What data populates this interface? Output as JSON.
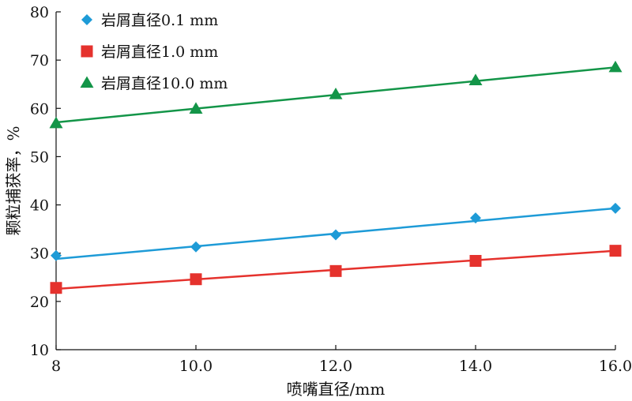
{
  "chart_data": {
    "type": "line",
    "xlabel": "喷嘴直径/mm",
    "ylabel": "颗粒捕获率，%",
    "xlim": [
      8,
      16
    ],
    "ylim": [
      10,
      80
    ],
    "x_ticks": [
      8,
      10,
      12,
      14,
      16
    ],
    "x_tick_labels": [
      "8",
      "10.0",
      "12.0",
      "14.0",
      "16.0"
    ],
    "y_ticks": [
      10,
      20,
      30,
      40,
      50,
      60,
      70,
      80
    ],
    "y_tick_labels": [
      "10",
      "20",
      "30",
      "40",
      "50",
      "60",
      "70",
      "80"
    ],
    "grid": false,
    "legend_position": "top-left",
    "series": [
      {
        "name": "岩屑直径0.1 mm",
        "marker": "diamond",
        "color": "#1e9bd7",
        "x": [
          8,
          10,
          12,
          14,
          16
        ],
        "values": [
          29.5,
          31.3,
          33.8,
          37.3,
          39.3
        ],
        "fit": [
          28.8,
          39.3
        ]
      },
      {
        "name": "岩屑直径1.0 mm",
        "marker": "square",
        "color": "#e5322d",
        "x": [
          8,
          10,
          12,
          14,
          16
        ],
        "values": [
          22.8,
          24.6,
          26.3,
          28.4,
          30.5
        ],
        "fit": [
          22.6,
          30.5
        ]
      },
      {
        "name": "岩屑直径10.0 mm",
        "marker": "triangle",
        "color": "#139548",
        "x": [
          8,
          10,
          12,
          14,
          16
        ],
        "values": [
          56.9,
          59.9,
          62.9,
          65.8,
          68.5
        ],
        "fit": [
          57.1,
          68.5
        ]
      }
    ]
  }
}
